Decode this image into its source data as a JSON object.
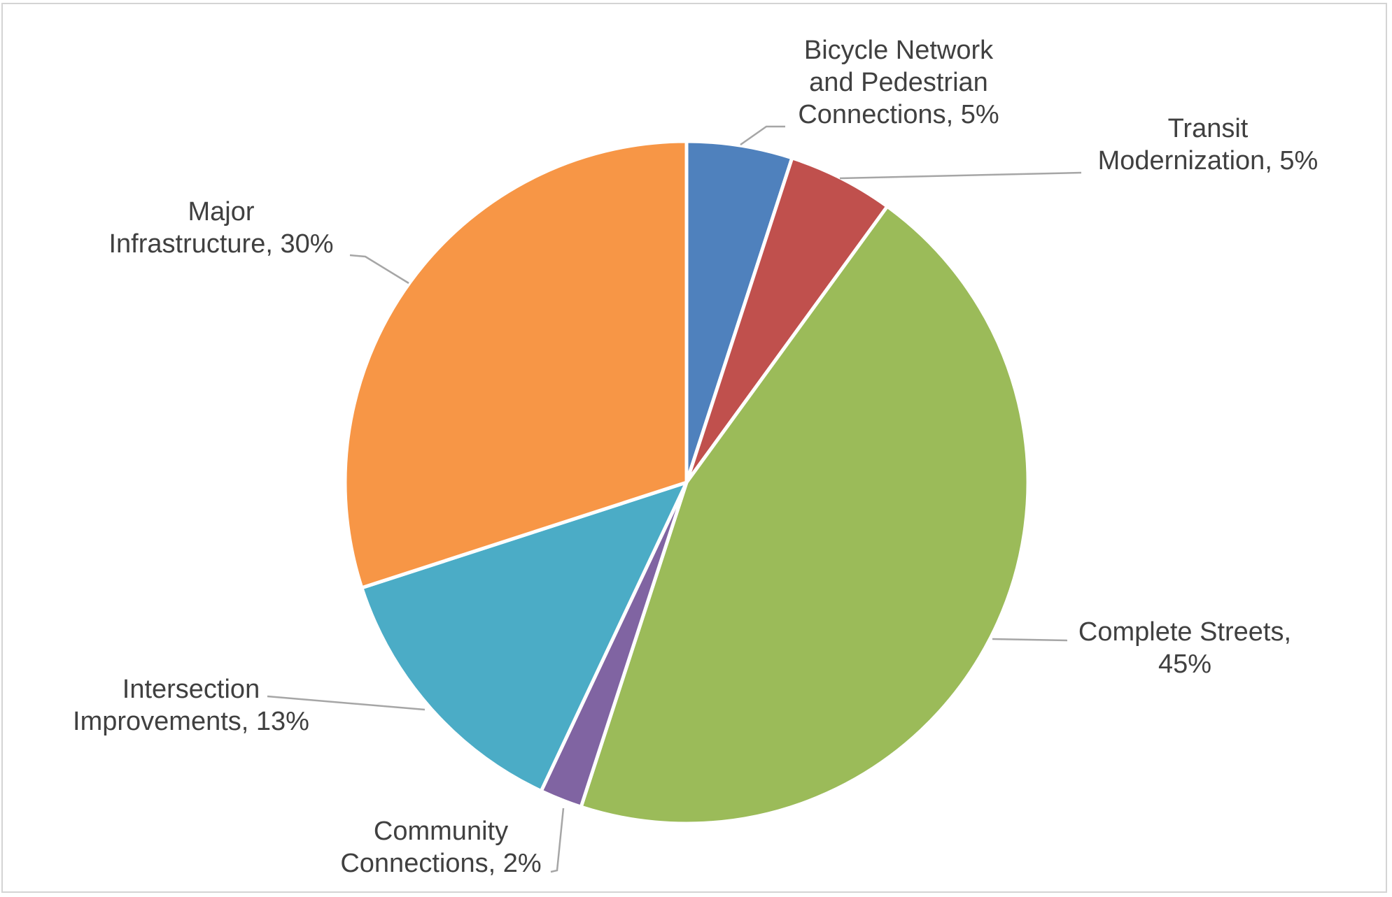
{
  "chart_data": {
    "type": "pie",
    "title": "",
    "slices": [
      {
        "label": "Bicycle Network and Pedestrian Connections",
        "value": 5,
        "display": "5%",
        "color": "#4f81bd",
        "label_lines": [
          "Bicycle Network",
          "and Pedestrian",
          "Connections, 5%"
        ]
      },
      {
        "label": "Transit Modernization",
        "value": 5,
        "display": "5%",
        "color": "#c0504d",
        "label_lines": [
          "Transit",
          "Modernization, 5%"
        ]
      },
      {
        "label": "Complete Streets",
        "value": 45,
        "display": "45%",
        "color": "#9bbb59",
        "label_lines": [
          "Complete Streets,",
          "45%"
        ]
      },
      {
        "label": "Community Connections",
        "value": 2,
        "display": "2%",
        "color": "#8064a2",
        "label_lines": [
          "Community",
          "Connections, 2%"
        ]
      },
      {
        "label": "Intersection Improvements",
        "value": 13,
        "display": "13%",
        "color": "#4bacc6",
        "label_lines": [
          "Intersection",
          "Improvements, 13%"
        ]
      },
      {
        "label": "Major Infrastructure",
        "value": 30,
        "display": "30%",
        "color": "#f79646",
        "label_lines": [
          "Major",
          "Infrastructure, 30%"
        ]
      }
    ],
    "start_angle": "12 o'clock",
    "direction": "clockwise",
    "legend": "none",
    "data_labels": "outside with leader lines"
  }
}
